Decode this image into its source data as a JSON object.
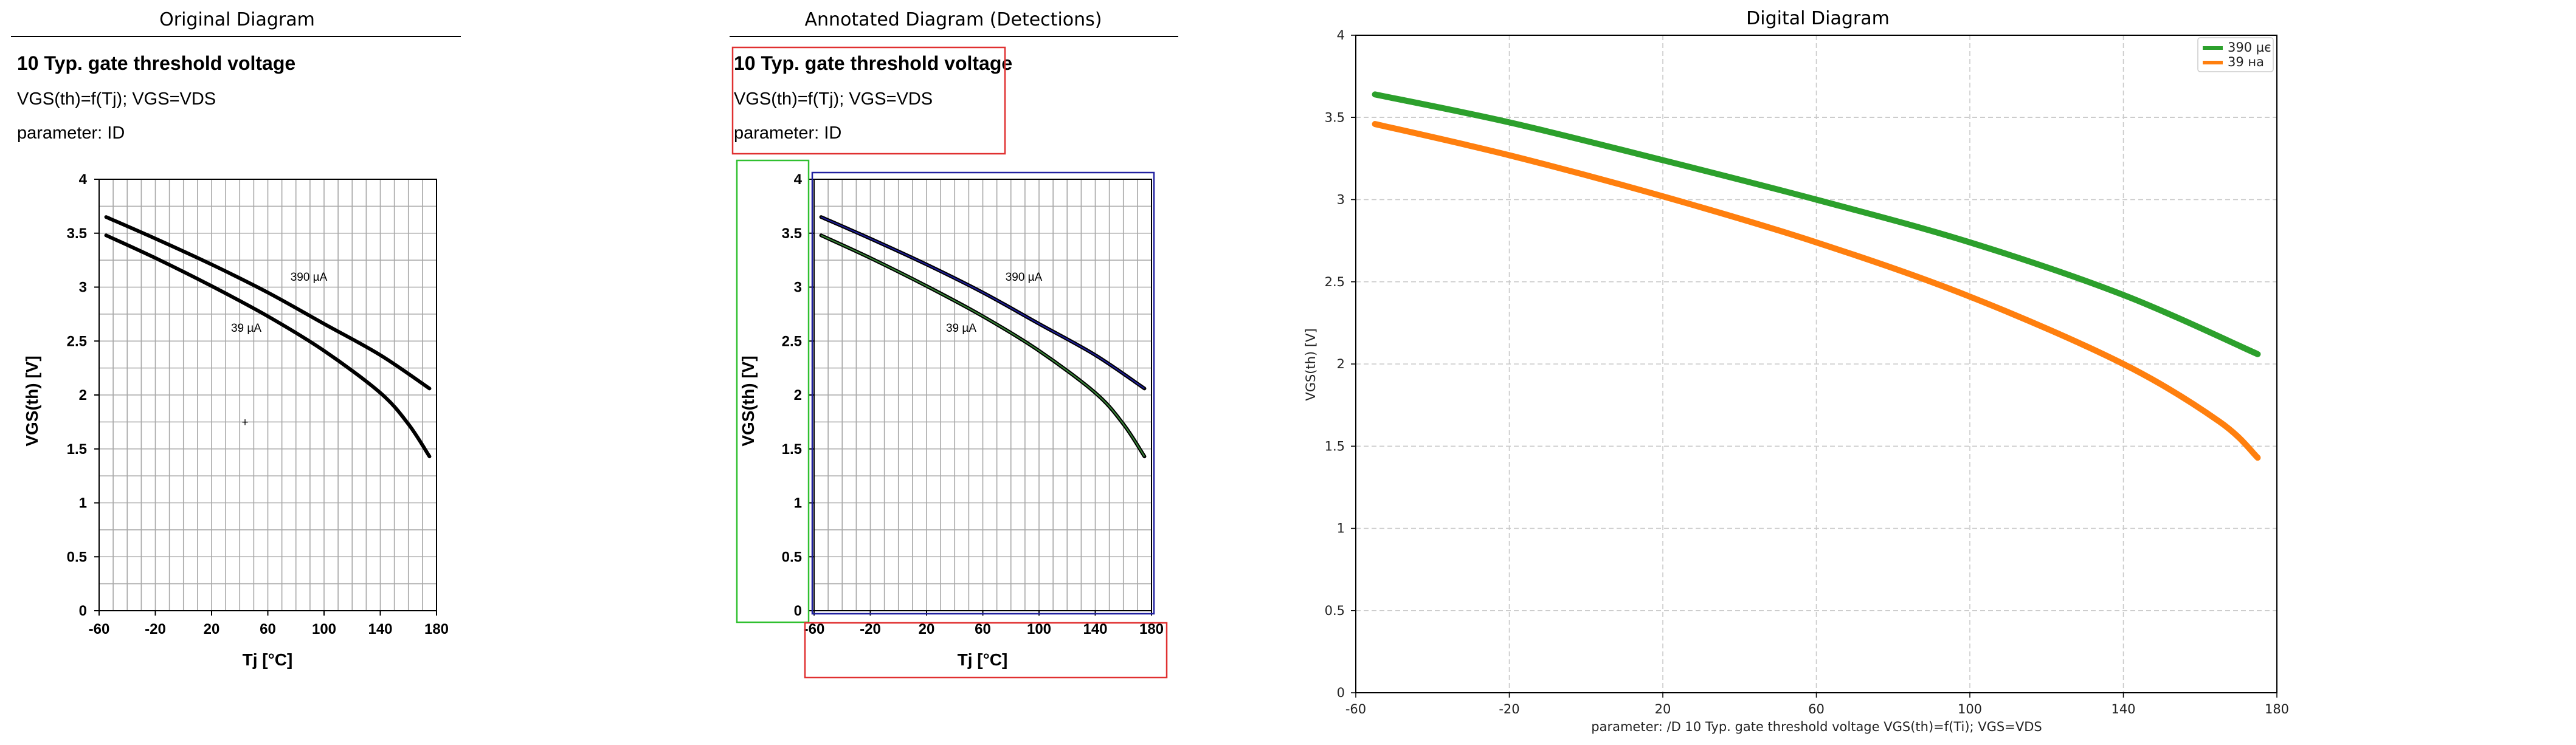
{
  "panel_titles": {
    "original": "Original Diagram",
    "annotated": "Annotated Diagram (Detections)",
    "digital": "Digital Diagram"
  },
  "header": {
    "title": "10 Typ. gate threshold voltage",
    "formula": "VGS(th)=f(Tj); VGS=VDS",
    "parameter": "parameter: ID"
  },
  "axis_labels": {
    "x": "Tj [°C]",
    "y": "VGS(th) [V]"
  },
  "curve_labels": [
    "390 µA",
    "39 µA"
  ],
  "digital_axes": {
    "xlabel": "parameter: /D 10 Typ. gate threshold voltage VGS(th)=f(Ti); VGS=VDS",
    "ylabel": "VGS(th) [V]",
    "legend": [
      "390 µє",
      "39 на"
    ]
  },
  "colors": {
    "series_390": "#2ca02c",
    "series_39": "#ff7f0e",
    "detect_text": "#e03030",
    "detect_axis": "#30c030",
    "detect_plot": "#2020a0"
  },
  "chart_data": [
    {
      "type": "line",
      "panel": "original",
      "xlim": [
        -60,
        180
      ],
      "ylim": [
        0,
        4
      ],
      "xticks": [
        -60,
        -20,
        20,
        60,
        100,
        140,
        180
      ],
      "yticks": [
        0,
        0.5,
        1,
        1.5,
        2,
        2.5,
        3,
        3.5,
        4
      ],
      "grid": true,
      "series": [
        {
          "name": "390 µA",
          "x": [
            -55,
            -20,
            20,
            60,
            100,
            140,
            175
          ],
          "y": [
            3.65,
            3.45,
            3.21,
            2.95,
            2.66,
            2.37,
            2.06
          ]
        },
        {
          "name": "39 µA",
          "x": [
            -55,
            -20,
            20,
            60,
            100,
            140,
            160,
            175
          ],
          "y": [
            3.48,
            3.27,
            3.01,
            2.73,
            2.41,
            2.02,
            1.73,
            1.43
          ]
        }
      ]
    },
    {
      "type": "line",
      "panel": "digital",
      "xlim": [
        -60,
        180
      ],
      "ylim": [
        0,
        4
      ],
      "xticks": [
        -60,
        -20,
        20,
        60,
        100,
        140,
        180
      ],
      "yticks": [
        0,
        0.5,
        1,
        1.5,
        2,
        2.5,
        3,
        3.5,
        4
      ],
      "grid": true,
      "legend_position": "top-right",
      "series": [
        {
          "name": "390 µє",
          "x": [
            -55,
            -20,
            20,
            60,
            100,
            140,
            175
          ],
          "y": [
            3.64,
            3.47,
            3.24,
            3.0,
            2.74,
            2.42,
            2.06
          ]
        },
        {
          "name": "39 на",
          "x": [
            -55,
            -20,
            20,
            60,
            100,
            140,
            165,
            175
          ],
          "y": [
            3.46,
            3.27,
            3.02,
            2.74,
            2.41,
            2.0,
            1.65,
            1.43
          ]
        }
      ]
    }
  ]
}
